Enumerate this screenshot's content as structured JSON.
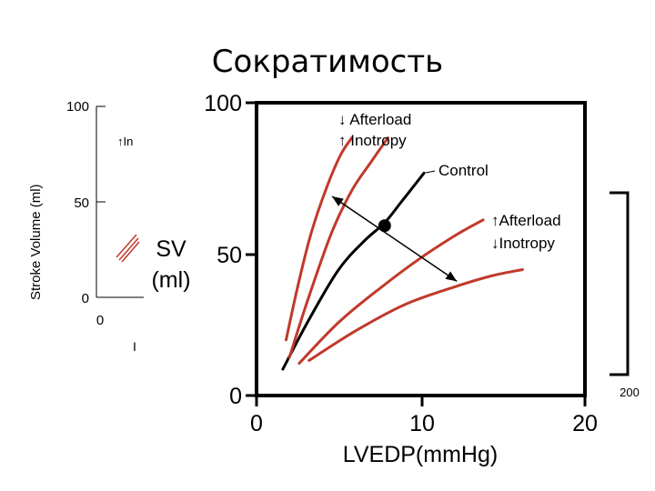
{
  "slide": {
    "title": "Сократимость"
  },
  "chart_data": [
    {
      "type": "line",
      "title": "",
      "xlabel": "",
      "ylabel": "Stroke Volume (ml)",
      "ylim": [
        0,
        100
      ],
      "yticks": [
        "0",
        "50",
        "100"
      ],
      "xticks": [
        "0"
      ],
      "annotations": [
        "↑In",
        "I"
      ],
      "note": "partially occluded background figure"
    },
    {
      "type": "line",
      "title": "",
      "xlabel": "LVEDP(mmHg)",
      "ylabel": "SV (ml)",
      "xlim": [
        0,
        20
      ],
      "ylim": [
        0,
        100
      ],
      "xticks": [
        "0",
        "10",
        "20"
      ],
      "yticks": [
        "0",
        "50",
        "100"
      ],
      "extra_tick_label": "200",
      "series": [
        {
          "name": "Control",
          "color": "#000000",
          "x": [
            1.6,
            3.2,
            5,
            6.6,
            7.8,
            8.8,
            10.2
          ],
          "y": [
            9,
            26,
            43,
            53,
            59,
            66,
            76
          ]
        },
        {
          "name": "↓ Afterload ↑ Inotropy (curve 1)",
          "color": "#c0392b",
          "x": [
            1.8,
            2.5,
            3.3,
            4.2,
            5.1,
            5.8
          ],
          "y": [
            19,
            37,
            55,
            70,
            82,
            88
          ]
        },
        {
          "name": "↓ Afterload ↑ Inotropy (curve 2)",
          "color": "#c0392b",
          "x": [
            2.0,
            3.2,
            4.6,
            5.8,
            7.0,
            8.0
          ],
          "y": [
            13,
            34,
            56,
            70,
            80,
            88
          ]
        },
        {
          "name": "↑Afterload ↓Inotropy (curve 1)",
          "color": "#c0392b",
          "x": [
            2.6,
            5,
            7.6,
            10,
            12.2,
            13.8
          ],
          "y": [
            11,
            25,
            37,
            47,
            55,
            60
          ]
        },
        {
          "name": "↑Afterload ↓Inotropy (curve 2)",
          "color": "#c0392b",
          "x": [
            3.2,
            6,
            9,
            12,
            14.4,
            16.2
          ],
          "y": [
            12,
            22,
            31,
            37,
            41,
            43
          ]
        }
      ],
      "point": {
        "x": 7.8,
        "y": 58
      },
      "arrow": {
        "from": {
          "x": 4.6,
          "y": 68
        },
        "to": {
          "x": 12.2,
          "y": 39
        }
      },
      "annotations": {
        "top": [
          "↓ Afterload",
          "↑ Inotropy"
        ],
        "control": "Control",
        "right": [
          "↑Afterload",
          "↓Inotropy"
        ]
      }
    }
  ]
}
